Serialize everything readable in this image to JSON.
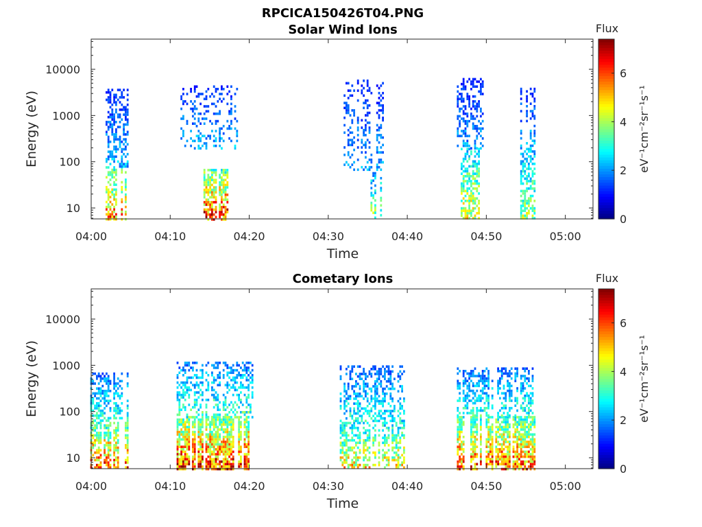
{
  "figure": {
    "title": "RPCICA150426T04.PNG"
  },
  "chart_data": [
    {
      "type": "heatmap",
      "title": "Solar Wind Ions",
      "xlabel": "Time",
      "ylabel": "Energy (eV)",
      "x_ticks": [
        "04:00",
        "04:10",
        "04:20",
        "04:30",
        "04:40",
        "04:50",
        "05:00"
      ],
      "x_range_minutes_after_0400": [
        0,
        63.5
      ],
      "y_scale": "log",
      "y_ticks": [
        "10",
        "100",
        "1000",
        "10000"
      ],
      "y_tick_values": [
        10,
        100,
        1000,
        10000
      ],
      "y_range": [
        5.8,
        45000
      ],
      "colorbar": {
        "title": "Flux",
        "label": "eV⁻¹cm⁻²sr⁻¹s⁻¹",
        "ticks": [
          "0",
          "2",
          "4",
          "6"
        ],
        "tick_values": [
          0,
          2,
          4,
          6
        ],
        "range": [
          0,
          7.4
        ],
        "colormap": "jet"
      },
      "bursts": [
        {
          "t": [
            2.0,
            4.5
          ],
          "emin": 5.8,
          "emax": 80,
          "peak": 6.5,
          "fill": 0.6
        },
        {
          "t": [
            2.0,
            4.5
          ],
          "emin": 80,
          "emax": 3800,
          "peak": 2.6,
          "fill": 0.45
        },
        {
          "t": [
            14.3,
            17.5
          ],
          "emin": 5.8,
          "emax": 70,
          "peak": 7.2,
          "fill": 0.7
        },
        {
          "t": [
            11.5,
            18.5
          ],
          "emin": 200,
          "emax": 4500,
          "peak": 2.6,
          "fill": 0.25
        },
        {
          "t": [
            35.5,
            36.6
          ],
          "emin": 6,
          "emax": 60,
          "peak": 4.4,
          "fill": 0.55
        },
        {
          "t": [
            32.0,
            37.0
          ],
          "emin": 70,
          "emax": 6000,
          "peak": 2.4,
          "fill": 0.3
        },
        {
          "t": [
            46.8,
            49.0
          ],
          "emin": 6,
          "emax": 200,
          "peak": 5.2,
          "fill": 0.6
        },
        {
          "t": [
            46.5,
            49.5
          ],
          "emin": 200,
          "emax": 6500,
          "peak": 2.4,
          "fill": 0.35
        },
        {
          "t": [
            54.3,
            56.0
          ],
          "emin": 6,
          "emax": 200,
          "peak": 4.6,
          "fill": 0.55
        },
        {
          "t": [
            54.3,
            56.0
          ],
          "emin": 200,
          "emax": 4000,
          "peak": 2.6,
          "fill": 0.45
        }
      ]
    },
    {
      "type": "heatmap",
      "title": "Cometary Ions",
      "xlabel": "Time",
      "ylabel": "Energy (eV)",
      "x_ticks": [
        "04:00",
        "04:10",
        "04:20",
        "04:30",
        "04:40",
        "04:50",
        "05:00"
      ],
      "x_range_minutes_after_0400": [
        0,
        63.5
      ],
      "y_scale": "log",
      "y_ticks": [
        "10",
        "100",
        "1000",
        "10000"
      ],
      "y_tick_values": [
        10,
        100,
        1000,
        10000
      ],
      "y_range": [
        5.8,
        45000
      ],
      "colorbar": {
        "title": "Flux",
        "label": "eV⁻¹cm⁻²sr⁻¹s⁻¹",
        "ticks": [
          "0",
          "2",
          "4",
          "6"
        ],
        "tick_values": [
          0,
          2,
          4,
          6
        ],
        "range": [
          0,
          7.4
        ],
        "colormap": "jet"
      },
      "bursts": [
        {
          "t": [
            0.0,
            4.5
          ],
          "emin": 5.8,
          "emax": 60,
          "peak": 6.8,
          "fill": 0.7
        },
        {
          "t": [
            0.0,
            4.5
          ],
          "emin": 60,
          "emax": 700,
          "peak": 3.6,
          "fill": 0.5
        },
        {
          "t": [
            11.0,
            20.0
          ],
          "emin": 5.8,
          "emax": 80,
          "peak": 7.3,
          "fill": 0.8
        },
        {
          "t": [
            11.0,
            20.5
          ],
          "emin": 80,
          "emax": 1200,
          "peak": 3.8,
          "fill": 0.45
        },
        {
          "t": [
            31.5,
            39.5
          ],
          "emin": 6,
          "emax": 60,
          "peak": 5.6,
          "fill": 0.55
        },
        {
          "t": [
            31.5,
            39.5
          ],
          "emin": 60,
          "emax": 1000,
          "peak": 3.4,
          "fill": 0.45
        },
        {
          "t": [
            46.5,
            56.0
          ],
          "emin": 6,
          "emax": 80,
          "peak": 6.8,
          "fill": 0.75
        },
        {
          "t": [
            46.5,
            56.0
          ],
          "emin": 80,
          "emax": 900,
          "peak": 3.6,
          "fill": 0.5
        }
      ]
    }
  ]
}
